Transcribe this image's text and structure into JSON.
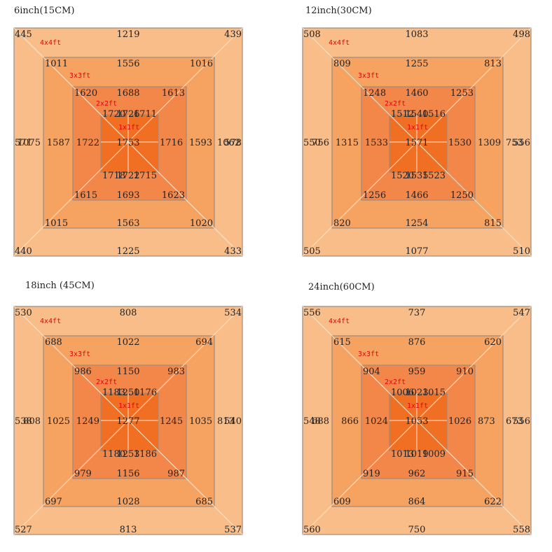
{
  "colors": {
    "ring_4x4": "#f8bd89",
    "ring_3x3": "#f6a261",
    "ring_2x2": "#f3874a",
    "ring_1x1": "#f16f22",
    "border": "#9a8c80",
    "diagonal": "#fde4cc",
    "zone_label": "#e8000e"
  },
  "zone_labels": [
    "4x4ft",
    "3x3ft",
    "2x2ft",
    "1x1ft"
  ],
  "panels": [
    {
      "title": "6inch(15CM)",
      "ring4": [
        "445",
        "1219",
        "439",
        "571",
        "578",
        "440",
        "1225",
        "433"
      ],
      "ring3": [
        "1011",
        "1556",
        "1016",
        "1075",
        "1062",
        "1015",
        "1563",
        "1020"
      ],
      "ring2": [
        "1620",
        "1688",
        "1613",
        "1587",
        "1593",
        "1615",
        "1693",
        "1623"
      ],
      "ring1": [
        "1720",
        "1726",
        "1711",
        "1722",
        "1716",
        "1718",
        "1722",
        "1715"
      ],
      "center": "1753"
    },
    {
      "title": "12inch(30CM)",
      "ring4": [
        "508",
        "1083",
        "498",
        "550",
        "556",
        "505",
        "1077",
        "510"
      ],
      "ring3": [
        "809",
        "1255",
        "813",
        "756",
        "753",
        "820",
        "1254",
        "815"
      ],
      "ring2": [
        "1248",
        "1460",
        "1253",
        "1315",
        "1309",
        "1256",
        "1466",
        "1250"
      ],
      "ring1": [
        "1512",
        "1540",
        "1516",
        "1533",
        "1530",
        "1520",
        "1535",
        "1523"
      ],
      "center": "1571"
    },
    {
      "title": "18inch (45CM)",
      "ring4": [
        "530",
        "808",
        "534",
        "538",
        "540",
        "527",
        "813",
        "537"
      ],
      "ring3": [
        "688",
        "1022",
        "694",
        "808",
        "813",
        "697",
        "1028",
        "685"
      ],
      "ring2": [
        "986",
        "1150",
        "983",
        "1025",
        "1035",
        "979",
        "1156",
        "987"
      ],
      "ring1": [
        "1183",
        "1250",
        "1176",
        "1249",
        "1245",
        "1180",
        "1253",
        "1186"
      ],
      "center": "1277"
    },
    {
      "title": "24inch(60CM)",
      "ring4": [
        "556",
        "737",
        "547",
        "548",
        "556",
        "560",
        "750",
        "558"
      ],
      "ring3": [
        "615",
        "876",
        "620",
        "688",
        "673",
        "609",
        "864",
        "622"
      ],
      "ring2": [
        "904",
        "959",
        "910",
        "866",
        "873",
        "919",
        "962",
        "915"
      ],
      "ring1": [
        "1006",
        "1023",
        "1015",
        "1024",
        "1026",
        "1013",
        "1019",
        "1009"
      ],
      "center": "1053"
    }
  ]
}
